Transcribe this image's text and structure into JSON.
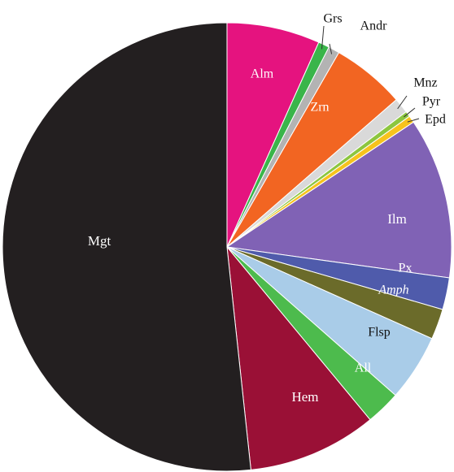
{
  "chart_data": {
    "type": "pie",
    "title": "",
    "start": "top (12 o'clock)",
    "direction": "clockwise",
    "slices": [
      {
        "label": "Alm",
        "value": 6.7,
        "color": "#e5137f",
        "label_color": "#ffffff",
        "italic": false
      },
      {
        "label": "Grs",
        "value": 0.8,
        "color": "#3ab54a",
        "label_color": "#111111",
        "italic": false
      },
      {
        "label": "Andr",
        "value": 0.8,
        "color": "#b3b3b3",
        "label_color": "#111111",
        "italic": false
      },
      {
        "label": "Zrn",
        "value": 5.3,
        "color": "#f26522",
        "label_color": "#ffffff",
        "italic": false
      },
      {
        "label": "Mnz",
        "value": 1.1,
        "color": "#d9d9d9",
        "label_color": "#111111",
        "italic": false
      },
      {
        "label": "Pyr",
        "value": 0.4,
        "color": "#8cc63f",
        "label_color": "#111111",
        "italic": false
      },
      {
        "label": "Epd",
        "value": 0.5,
        "color": "#f6c31c",
        "label_color": "#111111",
        "italic": false
      },
      {
        "label": "Ilm",
        "value": 11.6,
        "color": "#8062b5",
        "label_color": "#ffffff",
        "italic": false
      },
      {
        "label": "Px",
        "value": 2.3,
        "color": "#4f5bab",
        "label_color": "#ffffff",
        "italic": false
      },
      {
        "label": "Amph",
        "value": 2.2,
        "color": "#6b6b2a",
        "label_color": "#ffffff",
        "italic": true
      },
      {
        "label": "Flsp",
        "value": 4.8,
        "color": "#a9cce8",
        "label_color": "#111111",
        "italic": false
      },
      {
        "label": "All",
        "value": 2.5,
        "color": "#4dbb4d",
        "label_color": "#ffffff",
        "italic": false
      },
      {
        "label": "Hem",
        "value": 9.3,
        "color": "#9a1036",
        "label_color": "#ffffff",
        "italic": false
      },
      {
        "label": "Mgt",
        "value": 51.7,
        "color": "#231f20",
        "label_color": "#ffffff",
        "italic": false
      }
    ]
  }
}
